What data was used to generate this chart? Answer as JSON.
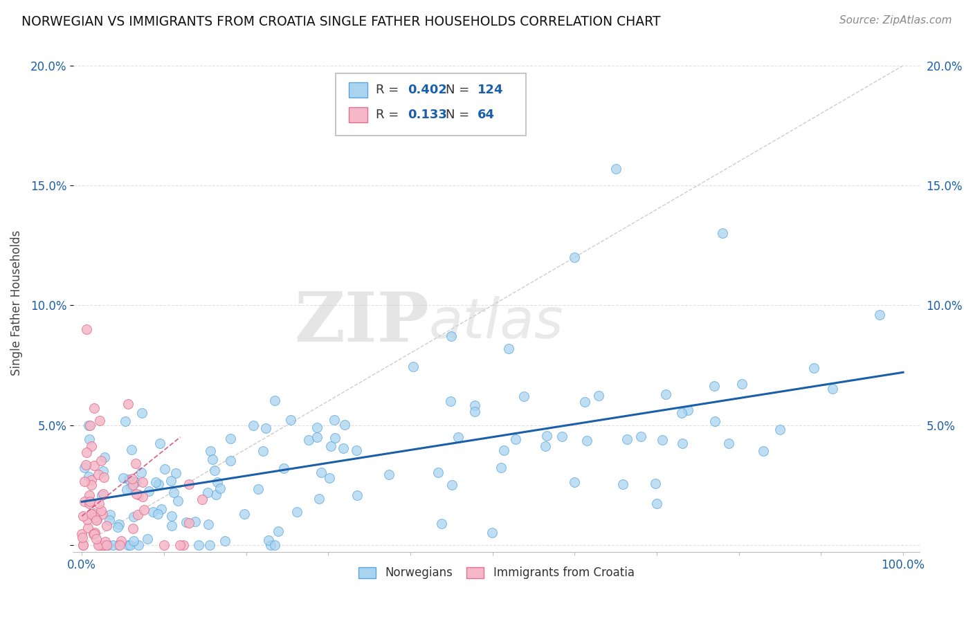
{
  "title": "NORWEGIAN VS IMMIGRANTS FROM CROATIA SINGLE FATHER HOUSEHOLDS CORRELATION CHART",
  "source": "Source: ZipAtlas.com",
  "ylabel": "Single Father Households",
  "legend_bottom": [
    "Norwegians",
    "Immigrants from Croatia"
  ],
  "norwegian_R": 0.402,
  "norwegian_N": 124,
  "croatian_R": 0.133,
  "croatian_N": 64,
  "norwegian_color": "#a8d4f0",
  "norwegian_edge": "#5ba3d9",
  "croatian_color": "#f5b8c8",
  "croatian_edge": "#e07090",
  "trendline_norwegian_color": "#1a5fa8",
  "trendline_croatian_color": "#d04070",
  "diagonal_color": "#c0c0c0",
  "watermark_zip": "ZIP",
  "watermark_atlas": "atlas",
  "background_color": "#ffffff",
  "grid_color": "#e0e0e0",
  "ylim": [
    -0.003,
    0.205
  ],
  "xlim": [
    -0.01,
    1.02
  ],
  "yticks": [
    0.0,
    0.05,
    0.1,
    0.15,
    0.2
  ],
  "ytick_labels": [
    "",
    "5.0%",
    "10.0%",
    "15.0%",
    "20.0%"
  ],
  "xticks": [
    0.0,
    0.1,
    0.2,
    0.3,
    0.4,
    0.5,
    0.6,
    0.7,
    0.8,
    0.9,
    1.0
  ],
  "nor_trend_x0": 0.0,
  "nor_trend_y0": 0.018,
  "nor_trend_x1": 1.0,
  "nor_trend_y1": 0.072,
  "cro_trend_x0": 0.0,
  "cro_trend_y0": 0.012,
  "cro_trend_x1": 0.12,
  "cro_trend_y1": 0.045
}
